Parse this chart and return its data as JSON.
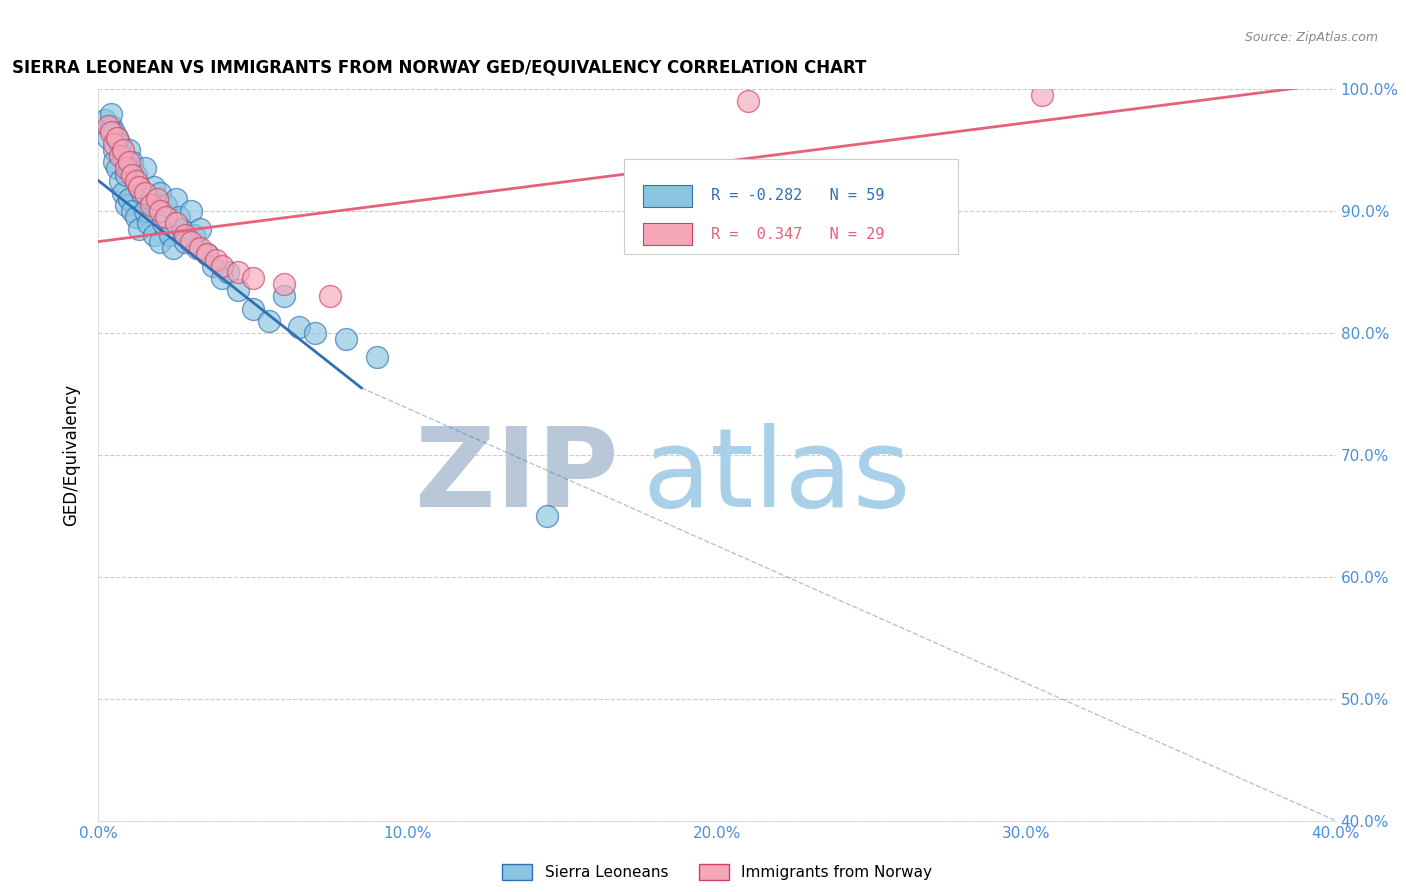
{
  "title": "SIERRA LEONEAN VS IMMIGRANTS FROM NORWAY GED/EQUIVALENCY CORRELATION CHART",
  "source": "Source: ZipAtlas.com",
  "ylabel": "GED/Equivalency",
  "xlim": [
    0.0,
    40.0
  ],
  "ylim": [
    40.0,
    100.0
  ],
  "xticks": [
    0.0,
    10.0,
    20.0,
    30.0,
    40.0
  ],
  "yticks": [
    40.0,
    50.0,
    60.0,
    70.0,
    80.0,
    90.0,
    100.0
  ],
  "blue_R": -0.282,
  "blue_N": 59,
  "pink_R": 0.347,
  "pink_N": 29,
  "blue_color": "#89c4e1",
  "pink_color": "#f4a7b9",
  "blue_line_color": "#3070b3",
  "pink_line_color": "#e8607a",
  "legend_label_blue": "Sierra Leoneans",
  "legend_label_pink": "Immigrants from Norway",
  "watermark_zip": "ZIP",
  "watermark_atlas": "atlas",
  "watermark_color_zip": "#b8c8d8",
  "watermark_color_atlas": "#a8d0e8",
  "blue_scatter_x": [
    0.2,
    0.3,
    0.4,
    0.4,
    0.5,
    0.5,
    0.5,
    0.6,
    0.6,
    0.7,
    0.7,
    0.8,
    0.8,
    0.9,
    0.9,
    1.0,
    1.0,
    1.0,
    1.1,
    1.1,
    1.2,
    1.2,
    1.3,
    1.3,
    1.4,
    1.5,
    1.5,
    1.6,
    1.7,
    1.8,
    1.8,
    1.9,
    2.0,
    2.0,
    2.1,
    2.2,
    2.3,
    2.4,
    2.5,
    2.6,
    2.7,
    2.8,
    3.0,
    3.1,
    3.2,
    3.3,
    3.5,
    3.7,
    4.0,
    4.2,
    4.5,
    5.0,
    5.5,
    6.0,
    6.5,
    7.0,
    8.0,
    9.0,
    14.5
  ],
  "blue_scatter_y": [
    97.5,
    96.0,
    97.0,
    98.0,
    96.5,
    95.0,
    94.0,
    96.0,
    93.5,
    95.5,
    92.5,
    94.5,
    91.5,
    93.0,
    90.5,
    95.0,
    93.5,
    91.0,
    94.0,
    90.0,
    93.0,
    89.5,
    92.0,
    88.5,
    91.5,
    93.5,
    90.0,
    89.0,
    91.0,
    92.0,
    88.0,
    90.5,
    91.5,
    87.5,
    89.0,
    90.5,
    88.0,
    87.0,
    91.0,
    89.5,
    88.5,
    87.5,
    90.0,
    88.0,
    87.0,
    88.5,
    86.5,
    85.5,
    84.5,
    85.0,
    83.5,
    82.0,
    81.0,
    83.0,
    80.5,
    80.0,
    79.5,
    78.0,
    65.0
  ],
  "pink_scatter_x": [
    0.3,
    0.4,
    0.5,
    0.6,
    0.7,
    0.8,
    0.9,
    1.0,
    1.1,
    1.2,
    1.3,
    1.5,
    1.7,
    1.9,
    2.0,
    2.2,
    2.5,
    2.8,
    3.0,
    3.3,
    3.5,
    3.8,
    4.0,
    4.5,
    5.0,
    6.0,
    7.5,
    21.0,
    30.5
  ],
  "pink_scatter_y": [
    97.0,
    96.5,
    95.5,
    96.0,
    94.5,
    95.0,
    93.5,
    94.0,
    93.0,
    92.5,
    92.0,
    91.5,
    90.5,
    91.0,
    90.0,
    89.5,
    89.0,
    88.0,
    87.5,
    87.0,
    86.5,
    86.0,
    85.5,
    85.0,
    84.5,
    84.0,
    83.0,
    99.0,
    99.5
  ],
  "blue_line_x0": 0.0,
  "blue_line_y0": 92.5,
  "blue_line_x1": 8.5,
  "blue_line_y1": 75.5,
  "blue_dash_x0": 8.5,
  "blue_dash_y0": 75.5,
  "blue_dash_x1": 40.0,
  "blue_dash_y1": 40.0,
  "pink_line_x0": 0.0,
  "pink_line_y0": 87.5,
  "pink_line_x1": 40.0,
  "pink_line_y1": 100.5
}
